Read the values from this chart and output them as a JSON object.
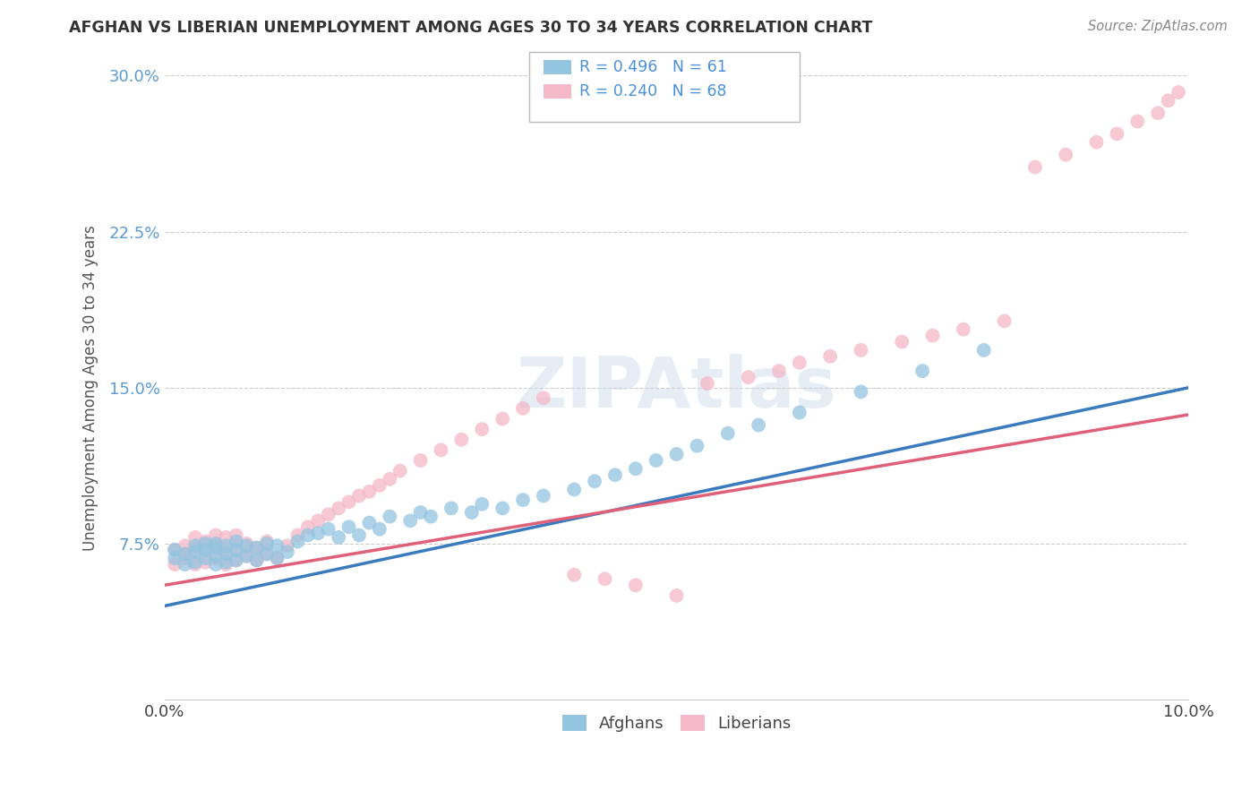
{
  "title": "AFGHAN VS LIBERIAN UNEMPLOYMENT AMONG AGES 30 TO 34 YEARS CORRELATION CHART",
  "source": "Source: ZipAtlas.com",
  "ylabel_label": "Unemployment Among Ages 30 to 34 years",
  "xmin": 0.0,
  "xmax": 0.1,
  "ymin": 0.0,
  "ymax": 0.3,
  "xtick_labels": [
    "0.0%",
    "",
    "",
    "",
    "",
    "10.0%"
  ],
  "ytick_labels": [
    "",
    "7.5%",
    "15.0%",
    "22.5%",
    "30.0%"
  ],
  "afghan_color": "#93c4e0",
  "liberian_color": "#f4b8c8",
  "afghan_line_color": "#3a7abf",
  "liberian_line_color": "#e0607a",
  "R_afghan": 0.496,
  "N_afghan": 61,
  "R_liberian": 0.24,
  "N_liberian": 68,
  "afghan_intercept": 0.045,
  "afghan_slope": 1.05,
  "liberian_intercept": 0.055,
  "liberian_slope": 0.82,
  "afghan_x": [
    0.001,
    0.001,
    0.002,
    0.002,
    0.003,
    0.003,
    0.003,
    0.004,
    0.004,
    0.004,
    0.005,
    0.005,
    0.005,
    0.005,
    0.006,
    0.006,
    0.006,
    0.007,
    0.007,
    0.007,
    0.008,
    0.008,
    0.009,
    0.009,
    0.01,
    0.01,
    0.011,
    0.011,
    0.012,
    0.013,
    0.014,
    0.015,
    0.016,
    0.017,
    0.018,
    0.019,
    0.02,
    0.021,
    0.022,
    0.024,
    0.025,
    0.026,
    0.028,
    0.03,
    0.031,
    0.033,
    0.035,
    0.037,
    0.04,
    0.042,
    0.044,
    0.046,
    0.048,
    0.05,
    0.052,
    0.055,
    0.058,
    0.062,
    0.068,
    0.074,
    0.08
  ],
  "afghan_y": [
    0.068,
    0.072,
    0.065,
    0.07,
    0.066,
    0.071,
    0.074,
    0.068,
    0.072,
    0.075,
    0.065,
    0.069,
    0.073,
    0.075,
    0.066,
    0.07,
    0.074,
    0.067,
    0.072,
    0.076,
    0.069,
    0.074,
    0.067,
    0.073,
    0.07,
    0.075,
    0.068,
    0.074,
    0.071,
    0.076,
    0.079,
    0.08,
    0.082,
    0.078,
    0.083,
    0.079,
    0.085,
    0.082,
    0.088,
    0.086,
    0.09,
    0.088,
    0.092,
    0.09,
    0.094,
    0.092,
    0.096,
    0.098,
    0.101,
    0.105,
    0.108,
    0.111,
    0.115,
    0.118,
    0.122,
    0.128,
    0.132,
    0.138,
    0.148,
    0.158,
    0.168
  ],
  "liberian_x": [
    0.001,
    0.001,
    0.002,
    0.002,
    0.002,
    0.003,
    0.003,
    0.003,
    0.004,
    0.004,
    0.004,
    0.005,
    0.005,
    0.005,
    0.006,
    0.006,
    0.006,
    0.007,
    0.007,
    0.007,
    0.008,
    0.008,
    0.009,
    0.009,
    0.01,
    0.01,
    0.011,
    0.012,
    0.013,
    0.014,
    0.015,
    0.016,
    0.017,
    0.018,
    0.019,
    0.02,
    0.021,
    0.022,
    0.023,
    0.025,
    0.027,
    0.029,
    0.031,
    0.033,
    0.035,
    0.037,
    0.04,
    0.043,
    0.046,
    0.05,
    0.053,
    0.057,
    0.06,
    0.062,
    0.065,
    0.068,
    0.072,
    0.075,
    0.078,
    0.082,
    0.085,
    0.088,
    0.091,
    0.093,
    0.095,
    0.097,
    0.098,
    0.099
  ],
  "liberian_y": [
    0.065,
    0.072,
    0.068,
    0.074,
    0.07,
    0.065,
    0.072,
    0.078,
    0.066,
    0.072,
    0.076,
    0.068,
    0.074,
    0.079,
    0.065,
    0.072,
    0.078,
    0.067,
    0.073,
    0.079,
    0.069,
    0.075,
    0.067,
    0.073,
    0.07,
    0.076,
    0.068,
    0.074,
    0.079,
    0.083,
    0.086,
    0.089,
    0.092,
    0.095,
    0.098,
    0.1,
    0.103,
    0.106,
    0.11,
    0.115,
    0.12,
    0.125,
    0.13,
    0.135,
    0.14,
    0.145,
    0.06,
    0.058,
    0.055,
    0.05,
    0.152,
    0.155,
    0.158,
    0.162,
    0.165,
    0.168,
    0.172,
    0.175,
    0.178,
    0.182,
    0.256,
    0.262,
    0.268,
    0.272,
    0.278,
    0.282,
    0.288,
    0.292
  ]
}
